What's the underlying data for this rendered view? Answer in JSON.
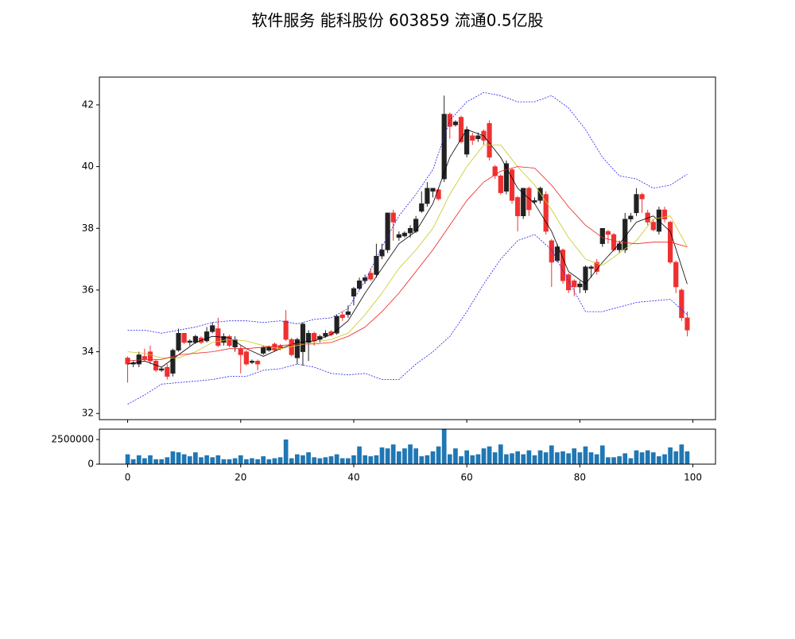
{
  "chart_data": [
    {
      "type": "candlestick",
      "title": "软件服务 能科股份 603859 流通0.5亿股",
      "xlim": [
        -5,
        104
      ],
      "ylim": [
        31.8,
        42.9
      ],
      "yticks": [
        32,
        34,
        36,
        38,
        40,
        42
      ],
      "up_color": "#222222",
      "down_color": "#f03030",
      "x": [
        0,
        1,
        2,
        3,
        4,
        5,
        6,
        7,
        8,
        9,
        10,
        11,
        12,
        13,
        14,
        15,
        16,
        17,
        18,
        19,
        20,
        21,
        22,
        23,
        24,
        25,
        26,
        27,
        28,
        29,
        30,
        31,
        32,
        33,
        34,
        35,
        36,
        37,
        38,
        39,
        40,
        41,
        42,
        43,
        44,
        45,
        46,
        47,
        48,
        49,
        50,
        51,
        52,
        53,
        54,
        55,
        56,
        57,
        58,
        59,
        60,
        61,
        62,
        63,
        64,
        65,
        66,
        67,
        68,
        69,
        70,
        71,
        72,
        73,
        74,
        75,
        76,
        77,
        78,
        79,
        80,
        81,
        82,
        83,
        84,
        85,
        86,
        87,
        88,
        89,
        90,
        91,
        92,
        93,
        94,
        95,
        96,
        97,
        98,
        99
      ],
      "open": [
        33.8,
        33.6,
        33.6,
        33.85,
        34.0,
        33.7,
        33.4,
        33.5,
        33.3,
        34.05,
        34.6,
        34.3,
        34.3,
        34.45,
        34.35,
        34.65,
        34.75,
        34.3,
        34.5,
        34.15,
        34.1,
        34.0,
        33.65,
        33.7,
        33.95,
        34.05,
        34.25,
        34.2,
        35.0,
        34.4,
        33.8,
        34.0,
        34.3,
        34.6,
        34.4,
        34.5,
        34.65,
        34.6,
        35.2,
        35.2,
        35.8,
        36.05,
        36.3,
        36.55,
        36.5,
        37.1,
        37.3,
        38.5,
        37.7,
        37.75,
        37.85,
        37.9,
        38.55,
        38.8,
        39.2,
        39.25,
        39.6,
        41.7,
        41.35,
        41.6,
        40.4,
        41.0,
        40.9,
        41.15,
        41.4,
        40.0,
        39.7,
        39.2,
        39.9,
        39.0,
        38.4,
        39.3,
        38.85,
        38.9,
        39.1,
        37.6,
        36.95,
        37.3,
        36.5,
        36.3,
        36.1,
        36.0,
        36.7,
        36.9,
        37.5,
        37.9,
        37.8,
        37.3,
        37.3,
        38.3,
        38.5,
        39.1,
        38.5,
        38.2,
        37.9,
        38.6,
        38.2,
        36.9,
        36.0,
        35.1
      ],
      "high": [
        33.85,
        33.7,
        34.0,
        34.1,
        34.2,
        33.75,
        33.5,
        33.6,
        34.1,
        34.75,
        34.6,
        34.4,
        34.55,
        34.5,
        34.8,
        34.95,
        35.1,
        34.6,
        34.55,
        34.5,
        34.2,
        34.05,
        33.75,
        33.75,
        34.2,
        34.2,
        34.3,
        34.25,
        35.35,
        34.45,
        34.45,
        34.95,
        34.7,
        34.65,
        34.55,
        34.7,
        34.7,
        35.2,
        35.3,
        35.5,
        36.1,
        36.4,
        36.5,
        36.7,
        37.5,
        37.5,
        38.5,
        38.6,
        37.9,
        37.9,
        38.1,
        38.4,
        39.2,
        39.5,
        39.3,
        39.3,
        42.3,
        41.75,
        41.5,
        41.65,
        41.3,
        41.1,
        41.1,
        41.2,
        41.5,
        40.05,
        39.75,
        40.2,
        39.95,
        39.05,
        39.3,
        39.35,
        39.0,
        39.35,
        39.2,
        37.65,
        37.5,
        37.35,
        36.55,
        36.35,
        36.3,
        36.8,
        36.8,
        37.0,
        38.0,
        37.95,
        37.85,
        37.6,
        38.5,
        38.5,
        39.3,
        39.15,
        38.6,
        38.3,
        38.7,
        38.7,
        38.25,
        36.95,
        36.05,
        35.3
      ],
      "low": [
        33.0,
        33.5,
        33.5,
        33.7,
        33.6,
        33.35,
        33.35,
        33.1,
        33.2,
        34.0,
        34.25,
        34.2,
        34.25,
        34.25,
        34.3,
        34.6,
        34.15,
        34.2,
        34.15,
        34.0,
        33.3,
        33.55,
        33.6,
        33.4,
        33.9,
        34.0,
        34.0,
        34.05,
        34.35,
        33.85,
        33.6,
        33.55,
        33.7,
        34.2,
        34.3,
        34.45,
        34.5,
        34.55,
        35.0,
        35.1,
        35.5,
        36.0,
        36.2,
        36.3,
        36.4,
        37.0,
        37.2,
        37.6,
        37.6,
        37.7,
        37.7,
        37.85,
        38.5,
        38.7,
        39.0,
        38.9,
        39.5,
        40.9,
        41.3,
        40.75,
        40.3,
        40.7,
        40.8,
        40.7,
        40.2,
        39.6,
        39.1,
        39.1,
        38.8,
        37.9,
        38.3,
        38.4,
        38.8,
        38.8,
        37.8,
        36.1,
        36.9,
        36.2,
        35.9,
        35.8,
        35.9,
        35.9,
        36.4,
        36.5,
        37.4,
        37.5,
        37.25,
        37.2,
        37.2,
        38.2,
        38.4,
        38.5,
        38.1,
        37.9,
        37.8,
        38.2,
        36.85,
        35.9,
        35.0,
        34.5
      ],
      "close": [
        33.6,
        33.65,
        33.9,
        33.75,
        33.7,
        33.4,
        33.45,
        33.2,
        34.05,
        34.6,
        34.3,
        34.35,
        34.5,
        34.3,
        34.65,
        34.85,
        34.2,
        34.5,
        34.2,
        34.4,
        33.9,
        33.6,
        33.7,
        33.6,
        34.15,
        34.15,
        34.05,
        34.1,
        34.4,
        33.9,
        34.4,
        34.9,
        34.6,
        34.35,
        34.5,
        34.6,
        34.55,
        35.15,
        35.1,
        35.3,
        36.05,
        36.3,
        36.4,
        36.35,
        37.1,
        37.3,
        38.5,
        38.2,
        37.8,
        37.85,
        38.0,
        38.3,
        38.8,
        39.3,
        39.3,
        38.95,
        41.7,
        41.3,
        41.45,
        40.8,
        41.2,
        40.85,
        41.0,
        40.85,
        40.3,
        39.7,
        39.15,
        40.1,
        38.9,
        38.4,
        39.3,
        38.6,
        38.9,
        39.3,
        37.9,
        36.9,
        37.4,
        36.3,
        36.0,
        36.1,
        36.2,
        36.75,
        36.75,
        36.6,
        38.0,
        37.8,
        37.3,
        37.5,
        38.3,
        38.4,
        39.1,
        38.95,
        38.2,
        37.95,
        38.6,
        38.3,
        36.9,
        36.1,
        35.1,
        34.7
      ],
      "line_x": [
        0,
        3,
        6,
        9,
        12,
        15,
        18,
        21,
        24,
        27,
        30,
        33,
        36,
        39,
        42,
        45,
        48,
        51,
        54,
        57,
        60,
        63,
        66,
        69,
        72,
        75,
        78,
        81,
        84,
        87,
        90,
        93,
        96,
        99
      ],
      "lines": [
        {
          "color": "#000000",
          "values": [
            33.6,
            33.7,
            33.5,
            33.9,
            34.3,
            34.5,
            34.45,
            34.1,
            33.85,
            34.1,
            34.3,
            34.35,
            34.55,
            35.0,
            35.9,
            36.7,
            37.5,
            37.9,
            38.8,
            40.3,
            41.2,
            41.0,
            40.3,
            39.3,
            38.8,
            37.9,
            36.6,
            36.2,
            36.9,
            37.5,
            38.2,
            38.4,
            37.9,
            36.2
          ]
        },
        {
          "color": "#c8c820",
          "values": [
            34.0,
            33.95,
            33.8,
            33.8,
            34.0,
            34.3,
            34.4,
            34.35,
            34.2,
            34.1,
            34.2,
            34.3,
            34.4,
            34.6,
            35.2,
            35.9,
            36.7,
            37.3,
            38.0,
            39.1,
            40.0,
            40.7,
            40.7,
            40.0,
            39.4,
            38.6,
            37.7,
            37.0,
            36.8,
            37.2,
            37.6,
            38.3,
            38.4,
            37.4
          ]
        },
        {
          "color": "#f02020",
          "values": [
            33.7,
            33.75,
            33.75,
            33.9,
            33.95,
            34.0,
            34.1,
            34.1,
            34.15,
            34.2,
            34.25,
            34.25,
            34.3,
            34.5,
            34.8,
            35.3,
            35.9,
            36.6,
            37.3,
            38.1,
            38.9,
            39.5,
            39.85,
            40.0,
            39.95,
            39.4,
            38.7,
            38.1,
            37.7,
            37.55,
            37.5,
            37.55,
            37.55,
            37.4
          ]
        },
        {
          "color": "#2020f0",
          "dashed": true,
          "values": [
            34.7,
            34.7,
            34.6,
            34.7,
            34.8,
            34.95,
            35.0,
            35.0,
            34.95,
            35.0,
            34.9,
            35.05,
            35.1,
            35.4,
            36.3,
            37.4,
            38.4,
            39.1,
            39.9,
            41.5,
            42.1,
            42.4,
            42.3,
            42.1,
            42.1,
            42.3,
            41.9,
            41.2,
            40.3,
            39.7,
            39.6,
            39.3,
            39.4,
            39.75
          ]
        },
        {
          "color": "#2020f0",
          "dashed": true,
          "values": [
            32.3,
            32.6,
            32.95,
            33.0,
            33.05,
            33.1,
            33.2,
            33.2,
            33.4,
            33.45,
            33.6,
            33.5,
            33.3,
            33.25,
            33.3,
            33.1,
            33.1,
            33.6,
            34.0,
            34.5,
            35.3,
            36.2,
            37.0,
            37.6,
            37.8,
            37.3,
            36.3,
            35.3,
            35.3,
            35.45,
            35.6,
            35.65,
            35.7,
            35.2
          ]
        }
      ]
    },
    {
      "type": "bar",
      "color": "#1f77b4",
      "xlim": [
        -5,
        104
      ],
      "ylim": [
        0,
        3550000
      ],
      "yticks": [
        0,
        2500000
      ],
      "xticks": [
        0,
        20,
        40,
        60,
        80,
        100
      ],
      "x": [
        0,
        1,
        2,
        3,
        4,
        5,
        6,
        7,
        8,
        9,
        10,
        11,
        12,
        13,
        14,
        15,
        16,
        17,
        18,
        19,
        20,
        21,
        22,
        23,
        24,
        25,
        26,
        27,
        28,
        29,
        30,
        31,
        32,
        33,
        34,
        35,
        36,
        37,
        38,
        39,
        40,
        41,
        42,
        43,
        44,
        45,
        46,
        47,
        48,
        49,
        50,
        51,
        52,
        53,
        54,
        55,
        56,
        57,
        58,
        59,
        60,
        61,
        62,
        63,
        64,
        65,
        66,
        67,
        68,
        69,
        70,
        71,
        72,
        73,
        74,
        75,
        76,
        77,
        78,
        79,
        80,
        81,
        82,
        83,
        84,
        85,
        86,
        87,
        88,
        89,
        90,
        91,
        92,
        93,
        94,
        95,
        96,
        97,
        98,
        99
      ],
      "values": [
        1000000,
        500000,
        900000,
        600000,
        900000,
        500000,
        500000,
        700000,
        1300000,
        1200000,
        1000000,
        800000,
        1200000,
        700000,
        900000,
        700000,
        900000,
        500000,
        500000,
        600000,
        900000,
        500000,
        600000,
        500000,
        800000,
        500000,
        600000,
        700000,
        2500000,
        600000,
        1000000,
        900000,
        1200000,
        700000,
        600000,
        700000,
        800000,
        1000000,
        600000,
        600000,
        900000,
        1800000,
        900000,
        800000,
        900000,
        1700000,
        1600000,
        2000000,
        1300000,
        1600000,
        2000000,
        1600000,
        800000,
        900000,
        1300000,
        1800000,
        3600000,
        1000000,
        1600000,
        800000,
        1400000,
        900000,
        1000000,
        1600000,
        1800000,
        1200000,
        2000000,
        1000000,
        1100000,
        1300000,
        1000000,
        1400000,
        900000,
        1400000,
        1200000,
        1900000,
        1200000,
        1300000,
        1100000,
        1600000,
        1200000,
        1800000,
        1200000,
        1000000,
        1900000,
        700000,
        700000,
        800000,
        1100000,
        600000,
        1400000,
        1200000,
        1400000,
        1200000,
        800000,
        1000000,
        1700000,
        1300000,
        2000000,
        1300000
      ]
    }
  ]
}
